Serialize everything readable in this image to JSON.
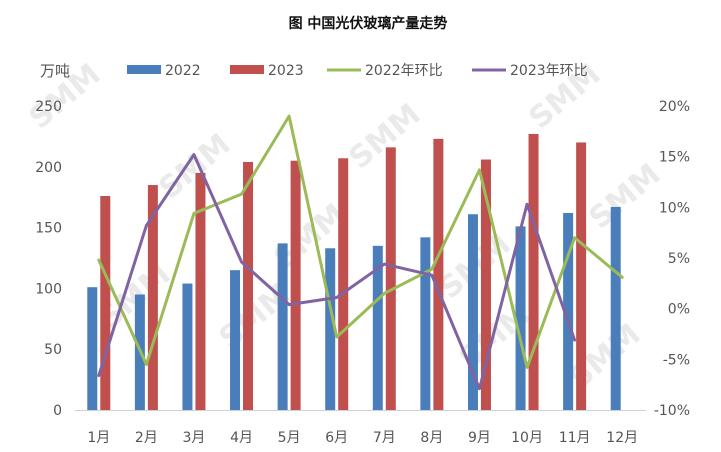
{
  "chart_data": {
    "type": "bar",
    "title": "图 中国光伏玻璃产量走势",
    "y_unit": "万吨",
    "categories": [
      "1月",
      "2月",
      "3月",
      "4月",
      "5月",
      "6月",
      "7月",
      "8月",
      "9月",
      "10月",
      "11月",
      "12月"
    ],
    "series": [
      {
        "name": "2022",
        "kind": "bar",
        "axis": "left",
        "color": "#4a7ebb",
        "values": [
          101,
          95,
          104,
          115,
          137,
          133,
          135,
          142,
          161,
          151,
          162,
          167
        ]
      },
      {
        "name": "2023",
        "kind": "bar",
        "axis": "left",
        "color": "#c0504d",
        "values": [
          176,
          185,
          195,
          204,
          205,
          207,
          216,
          223,
          206,
          227,
          220,
          null
        ]
      },
      {
        "name": "2022年环比",
        "kind": "line",
        "axis": "right",
        "color": "#9bbb59",
        "values": [
          4.8,
          -5.5,
          9.4,
          11.3,
          19.0,
          -2.8,
          1.5,
          3.9,
          13.7,
          -5.8,
          7.0,
          3.1
        ]
      },
      {
        "name": "2023年环比",
        "kind": "line",
        "axis": "right",
        "color": "#8064a2",
        "values": [
          -6.6,
          8.2,
          15.2,
          4.6,
          0.4,
          1.1,
          4.4,
          3.3,
          -7.9,
          10.3,
          -3.1,
          null
        ]
      }
    ],
    "y_left": {
      "min": 0,
      "max": 250,
      "ticks": [
        "0",
        "50",
        "100",
        "150",
        "200",
        "250"
      ]
    },
    "y_right": {
      "min": -10,
      "max": 20,
      "ticks": [
        "-10%",
        "-5%",
        "0%",
        "5%",
        "10%",
        "15%",
        "20%"
      ]
    },
    "grid": false,
    "legend": "top",
    "watermark": "SMM"
  }
}
